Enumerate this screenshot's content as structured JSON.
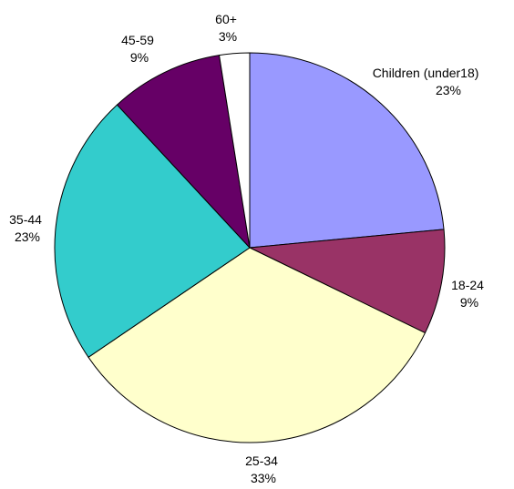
{
  "chart_data": {
    "type": "pie",
    "start_angle": "12 o'clock",
    "direction": "clockwise",
    "slices": [
      {
        "label": "Children (under18)",
        "value_label": "23%",
        "value": 23.5,
        "color": "#9999ff"
      },
      {
        "label": "18-24",
        "value_label": "9%",
        "value": 8.7,
        "color": "#993366"
      },
      {
        "label": "25-34",
        "value_label": "33%",
        "value": 33.3,
        "color": "#ffffcc"
      },
      {
        "label": "35-44",
        "value_label": "23%",
        "value": 22.6,
        "color": "#33cccc"
      },
      {
        "label": "45-59",
        "value_label": "9%",
        "value": 9.4,
        "color": "#660066"
      },
      {
        "label": "60+",
        "value_label": "3%",
        "value": 2.5,
        "color": "#ffffff"
      }
    ],
    "outline_color": "#000000"
  }
}
